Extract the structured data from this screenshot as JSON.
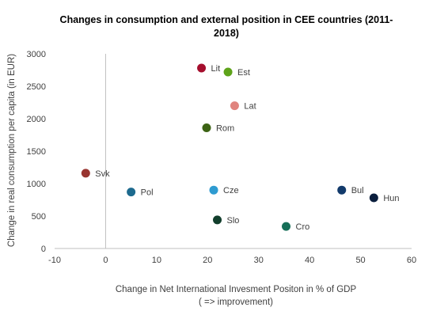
{
  "chart_data": {
    "type": "scatter",
    "title_lines": [
      "Changes in consumption and external position in CEE  countries (2011-",
      "2018)"
    ],
    "xlabel_lines": [
      "Change in Net International Invesment Positon in % of GDP",
      "( => improvement)"
    ],
    "ylabel": "Change in real consumption  per capita (in EUR)",
    "xlim": [
      -10,
      60
    ],
    "ylim": [
      0,
      3000
    ],
    "x_ticks": [
      -10,
      0,
      10,
      20,
      30,
      40,
      50,
      60
    ],
    "y_ticks": [
      0,
      500,
      1000,
      1500,
      2000,
      2500,
      3000
    ],
    "grid": false,
    "legend": "none",
    "points": [
      {
        "label": "Lit",
        "x": 18.8,
        "y": 2780,
        "color": "#A50E2D"
      },
      {
        "label": "Est",
        "x": 24.0,
        "y": 2720,
        "color": "#5EA31A"
      },
      {
        "label": "Lat",
        "x": 25.3,
        "y": 2200,
        "color": "#E0847E"
      },
      {
        "label": "Rom",
        "x": 19.8,
        "y": 1860,
        "color": "#3C6314"
      },
      {
        "label": "Svk",
        "x": -3.9,
        "y": 1160,
        "color": "#983530"
      },
      {
        "label": "Pol",
        "x": 5.0,
        "y": 870,
        "color": "#1D6A8E"
      },
      {
        "label": "Cze",
        "x": 21.2,
        "y": 900,
        "color": "#2E9BD1"
      },
      {
        "label": "Slo",
        "x": 21.9,
        "y": 440,
        "color": "#123E2C"
      },
      {
        "label": "Cro",
        "x": 35.4,
        "y": 340,
        "color": "#166F58"
      },
      {
        "label": "Bul",
        "x": 46.3,
        "y": 900,
        "color": "#123A6B"
      },
      {
        "label": "Hun",
        "x": 52.6,
        "y": 780,
        "color": "#0A1E3D"
      }
    ]
  }
}
